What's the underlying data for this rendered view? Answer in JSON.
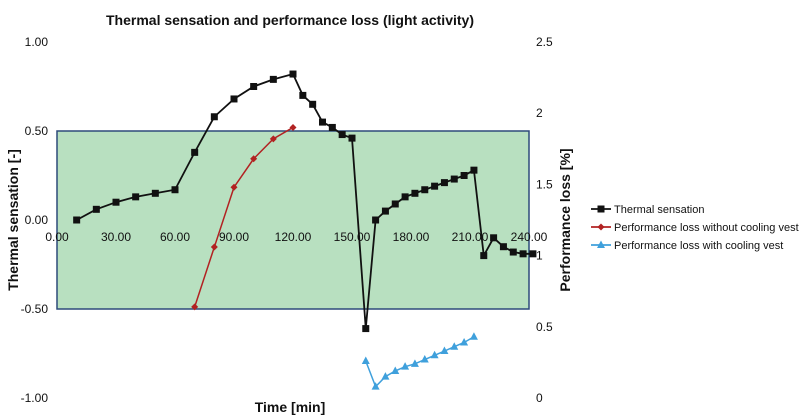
{
  "chart_data": {
    "type": "line",
    "title": "Thermal sensation and performance loss (light activity)",
    "xlabel": "Time [min]",
    "ylabel": "Thermal sensation [-]",
    "y2label": "Performance loss [%]",
    "xlim": [
      0,
      240
    ],
    "ylim": [
      -1.0,
      1.0
    ],
    "y2lim": [
      0,
      2.5
    ],
    "x_ticks": [
      "0.00",
      "30.00",
      "60.00",
      "90.00",
      "120.00",
      "150.00",
      "180.00",
      "210.00",
      "240.00"
    ],
    "y_ticks": [
      "-1.00",
      "-0.50",
      "0.00",
      "0.50",
      "1.00"
    ],
    "y2_ticks": [
      "0",
      "0.5",
      "1",
      "1.5",
      "2",
      "2.5"
    ],
    "comfort_band": [
      -0.5,
      0.5
    ],
    "grid": false,
    "legend_position": "right",
    "colors": {
      "band_fill": "#b8e0c0",
      "band_stroke": "#2d4a7a",
      "series": [
        "#111111",
        "#b22222",
        "#3fa0dc"
      ]
    },
    "series": [
      {
        "name": "Thermal sensation",
        "axis": "left",
        "marker": "square",
        "x": [
          10,
          20,
          30,
          40,
          50,
          60,
          70,
          80,
          90,
          100,
          110,
          120,
          125,
          130,
          135,
          140,
          145,
          150,
          157,
          162,
          167,
          172,
          177,
          182,
          187,
          192,
          197,
          202,
          207,
          212,
          217,
          222,
          227,
          232,
          237,
          242
        ],
        "y": [
          0.0,
          0.06,
          0.1,
          0.13,
          0.15,
          0.17,
          0.38,
          0.58,
          0.68,
          0.75,
          0.79,
          0.82,
          0.7,
          0.65,
          0.55,
          0.52,
          0.48,
          0.46,
          -0.61,
          0.0,
          0.05,
          0.09,
          0.13,
          0.15,
          0.17,
          0.19,
          0.21,
          0.23,
          0.25,
          0.28,
          -0.2,
          -0.1,
          -0.15,
          -0.18,
          -0.19,
          -0.19
        ]
      },
      {
        "name": "Performance loss without cooling vest",
        "axis": "right",
        "marker": "diamond",
        "x": [
          70,
          80,
          90,
          100,
          110,
          120
        ],
        "y": [
          0.64,
          1.06,
          1.48,
          1.68,
          1.82,
          1.9
        ]
      },
      {
        "name": "Performance loss with cooling vest",
        "axis": "right",
        "marker": "triangle",
        "x": [
          157,
          162,
          167,
          172,
          177,
          182,
          187,
          192,
          197,
          202,
          207,
          212
        ],
        "y": [
          0.26,
          0.08,
          0.15,
          0.19,
          0.22,
          0.24,
          0.27,
          0.3,
          0.33,
          0.36,
          0.39,
          0.43
        ]
      }
    ]
  }
}
